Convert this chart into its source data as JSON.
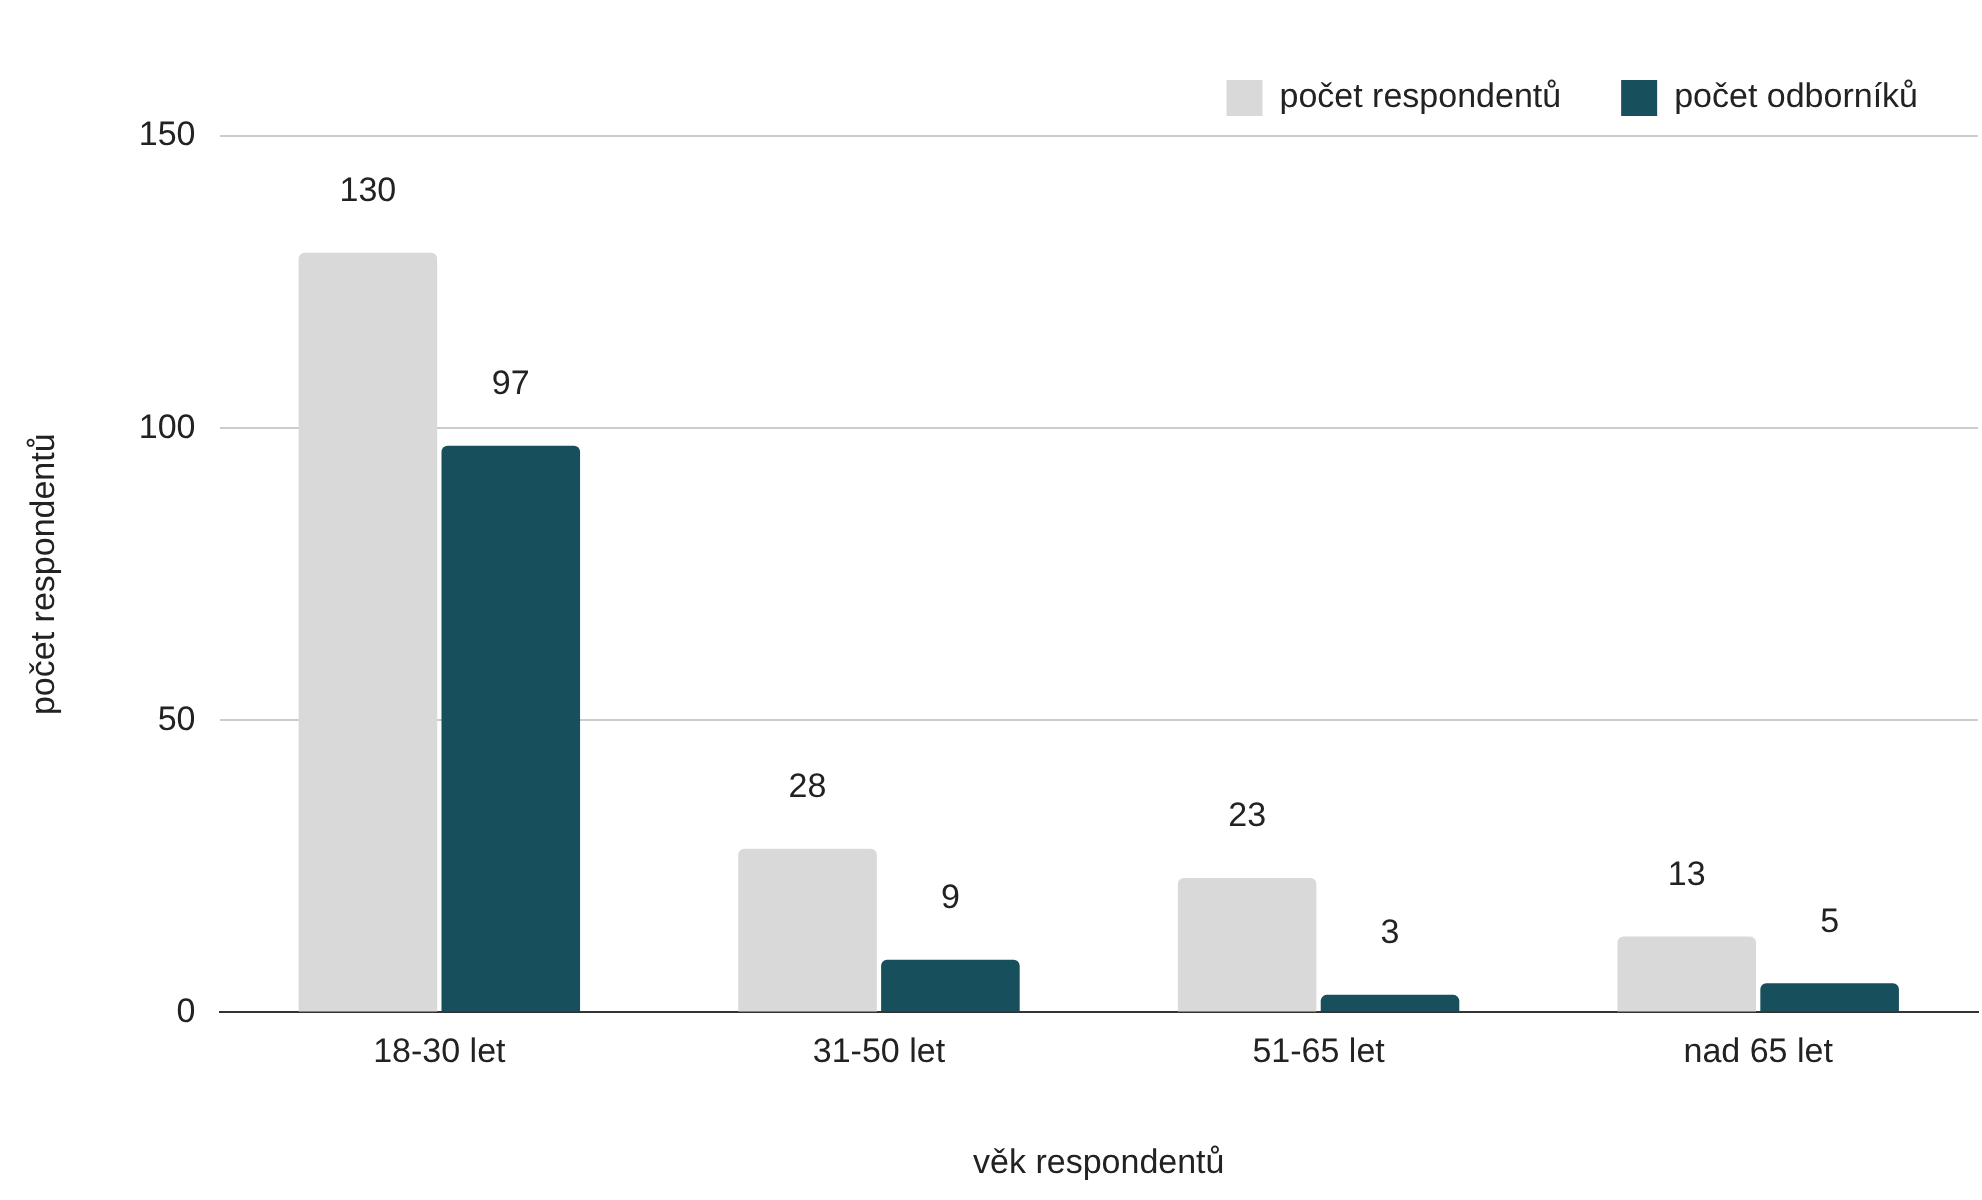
{
  "chart_data": {
    "type": "bar",
    "xlabel": "věk respondentů",
    "ylabel": "počet respondentů",
    "categories": [
      "18-30 let",
      "31-50 let",
      "51-65 let",
      "nad 65 let"
    ],
    "series": [
      {
        "name": "počet respondentů",
        "color": "#d9d9d9",
        "values": [
          130,
          28,
          23,
          13
        ]
      },
      {
        "name": "počet odborníků",
        "color": "#174f5c",
        "values": [
          97,
          9,
          3,
          5
        ]
      }
    ],
    "ylim": [
      0,
      150
    ],
    "yticks": [
      0,
      50,
      100,
      150
    ],
    "grid": "y",
    "legend": "top right",
    "data_labels": true
  }
}
